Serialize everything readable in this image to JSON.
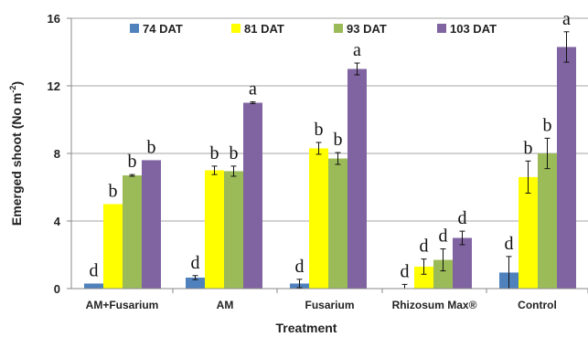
{
  "chart_data": {
    "type": "bar",
    "title": "",
    "xlabel": "Treatment",
    "ylabel": "Emerged shoot (No m",
    "ylabel_exponent": "-2",
    "ylabel_close": ")",
    "ylim": [
      0,
      16
    ],
    "yticks": [
      "0",
      "4",
      "8",
      "12",
      "16"
    ],
    "yticks_values": [
      0,
      4,
      8,
      12,
      16
    ],
    "grid": true,
    "legend_position": "top",
    "categories": [
      "AM+Fusarium",
      "AM",
      "Fusarium",
      "Rhizosum Max®",
      "Control"
    ],
    "series": [
      {
        "name": "74 DAT",
        "color": "#4f81bd",
        "values": [
          0.3,
          0.65,
          0.3,
          0.0,
          0.95
        ],
        "errors": [
          0.0,
          0.12,
          0.25,
          0.25,
          0.95
        ],
        "labels": [
          "d",
          "d",
          "d",
          "d",
          "d"
        ]
      },
      {
        "name": "81 DAT",
        "color": "#ffff00",
        "values": [
          5.0,
          7.0,
          8.3,
          1.3,
          6.6
        ],
        "errors": [
          0.0,
          0.25,
          0.35,
          0.45,
          0.95
        ],
        "labels": [
          "b",
          "b",
          "b",
          "d",
          "b"
        ]
      },
      {
        "name": "93 DAT",
        "color": "#9bbb59",
        "values": [
          6.7,
          6.95,
          7.7,
          1.7,
          8.0
        ],
        "errors": [
          0.05,
          0.3,
          0.35,
          0.65,
          0.9
        ],
        "labels": [
          "b",
          "b",
          "b",
          "d",
          "b"
        ]
      },
      {
        "name": "103 DAT",
        "color": "#8064a2",
        "values": [
          7.6,
          11.0,
          13.0,
          3.0,
          14.3
        ],
        "errors": [
          0.0,
          0.05,
          0.35,
          0.4,
          0.9
        ],
        "labels": [
          "b",
          "a",
          "a",
          "d",
          "a"
        ]
      }
    ]
  }
}
